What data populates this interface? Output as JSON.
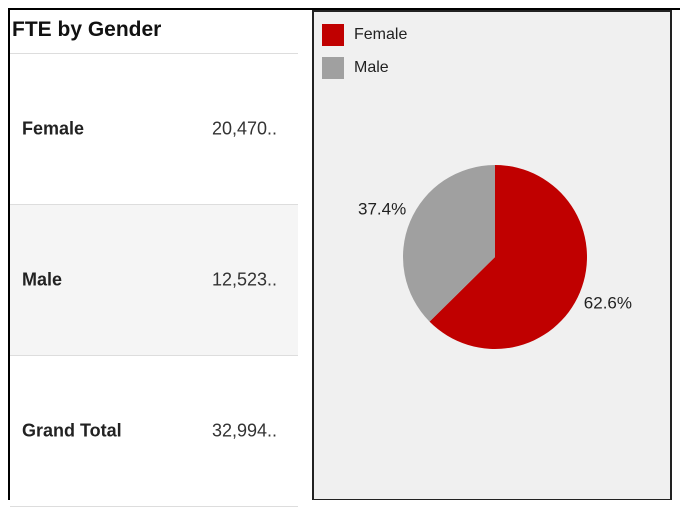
{
  "title": "FTE by Gender",
  "table": {
    "rows": [
      [
        "Female",
        "20,470.."
      ],
      [
        "Male",
        "12,523.."
      ],
      [
        "Grand Total",
        "32,994.."
      ]
    ]
  },
  "chart_data": {
    "type": "pie",
    "categories": [
      "Female",
      "Male"
    ],
    "values": [
      62.6,
      37.4
    ],
    "value_labels": [
      "62.6%",
      "37.4%"
    ],
    "colors": [
      "#c00000",
      "#a0a0a0"
    ],
    "legend": "top-left"
  }
}
